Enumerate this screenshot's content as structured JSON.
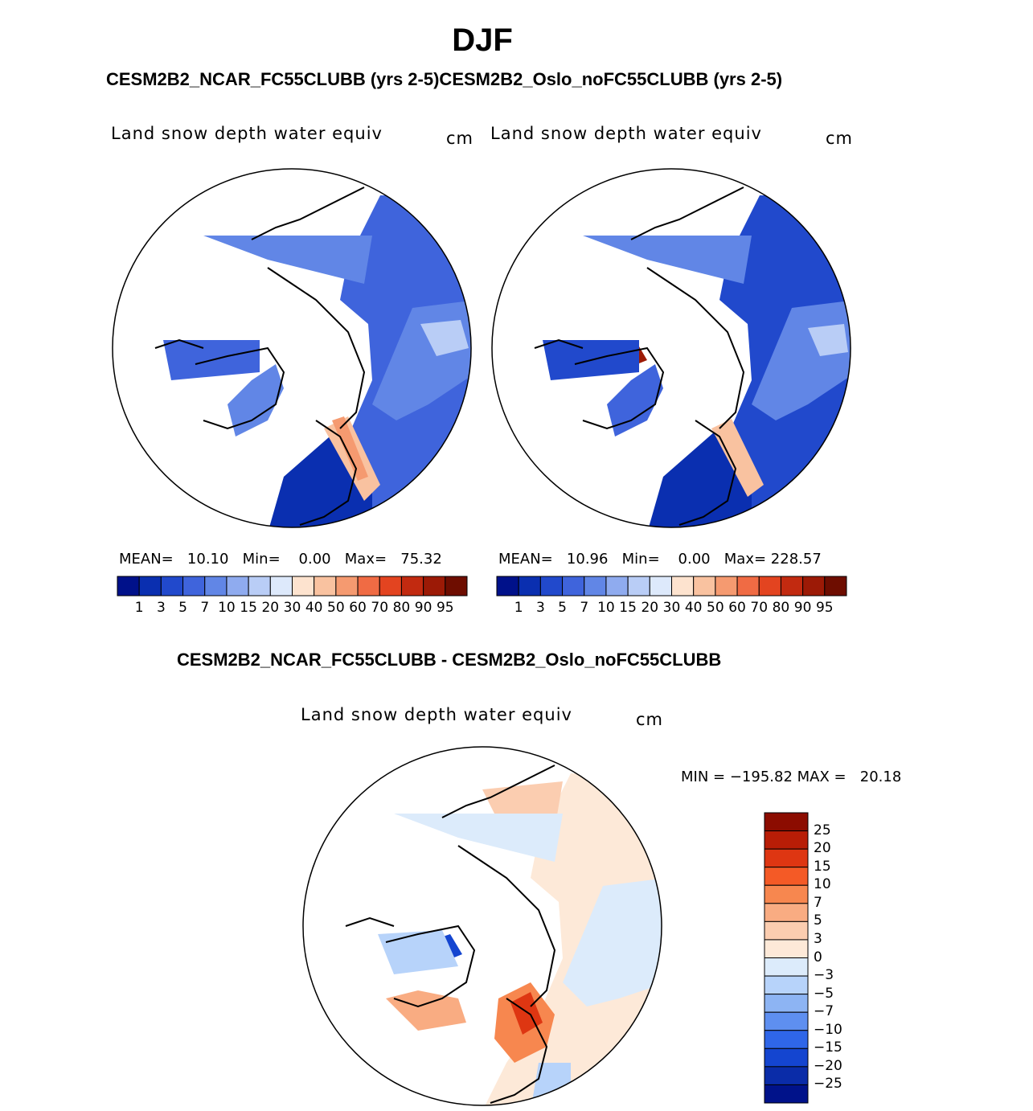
{
  "title": "DJF",
  "subtitles": {
    "top": "CESM2B2_NCAR_FC55CLUBB (yrs 2-5)CESM2B2_Oslo_noFC55CLUBB (yrs 2-5)",
    "diff": "CESM2B2_NCAR_FC55CLUBB - CESM2B2_Oslo_noFC55CLUBB"
  },
  "chart_data": [
    {
      "type": "heatmap",
      "projection": "north-polar-stereographic",
      "variable": "Land snow depth water equiv",
      "units": "cm",
      "case": "CESM2B2_NCAR_FC55CLUBB (yrs 2-5)",
      "stats": {
        "mean": "10.10",
        "min": "0.00",
        "max": "75.32"
      },
      "stats_text": "MEAN=   10.10   Min=    0.00   Max=   75.32",
      "colorbar_levels": [
        "1",
        "3",
        "5",
        "7",
        "10",
        "15",
        "20",
        "30",
        "40",
        "50",
        "60",
        "70",
        "80",
        "90",
        "95"
      ],
      "colorbar_colors": [
        "#00118a",
        "#0a2fb0",
        "#2149cc",
        "#3f64dc",
        "#6186e6",
        "#8fabef",
        "#b9cdf6",
        "#dde9fb",
        "#fde3cf",
        "#f9c2a0",
        "#f59a70",
        "#f06b44",
        "#e34420",
        "#c22a10",
        "#9c1a06",
        "#6e0d00"
      ]
    },
    {
      "type": "heatmap",
      "projection": "north-polar-stereographic",
      "variable": "Land snow depth water equiv",
      "units": "cm",
      "case": "CESM2B2_Oslo_noFC55CLUBB (yrs 2-5)",
      "stats": {
        "mean": "10.96",
        "min": "0.00",
        "max": "228.57"
      },
      "stats_text": "MEAN=   10.96   Min=    0.00   Max= 228.57",
      "colorbar_levels": [
        "1",
        "3",
        "5",
        "7",
        "10",
        "15",
        "20",
        "30",
        "40",
        "50",
        "60",
        "70",
        "80",
        "90",
        "95"
      ],
      "colorbar_colors": [
        "#00118a",
        "#0a2fb0",
        "#2149cc",
        "#3f64dc",
        "#6186e6",
        "#8fabef",
        "#b9cdf6",
        "#dde9fb",
        "#fde3cf",
        "#f9c2a0",
        "#f59a70",
        "#f06b44",
        "#e34420",
        "#c22a10",
        "#9c1a06",
        "#6e0d00"
      ]
    },
    {
      "type": "heatmap",
      "projection": "north-polar-stereographic",
      "variable": "Land snow depth water equiv",
      "units": "cm",
      "case": "CESM2B2_NCAR_FC55CLUBB - CESM2B2_Oslo_noFC55CLUBB",
      "stats": {
        "min": "-195.82",
        "max": "20.18"
      },
      "stats_text": "MIN = −195.82 MAX =   20.18",
      "colorbar_levels": [
        "25",
        "20",
        "15",
        "10",
        "7",
        "5",
        "3",
        "0",
        "−3",
        "−5",
        "−7",
        "−10",
        "−15",
        "−20",
        "−25"
      ],
      "colorbar_colors": [
        "#8c0c00",
        "#b81d06",
        "#de3612",
        "#f45a26",
        "#f7874f",
        "#f9ac82",
        "#fbcdb0",
        "#fde9d8",
        "#dcebfb",
        "#b7d3fa",
        "#8db4f3",
        "#5e8ff0",
        "#2f66e8",
        "#1445d0",
        "#0a2ca8",
        "#00128a"
      ]
    }
  ]
}
